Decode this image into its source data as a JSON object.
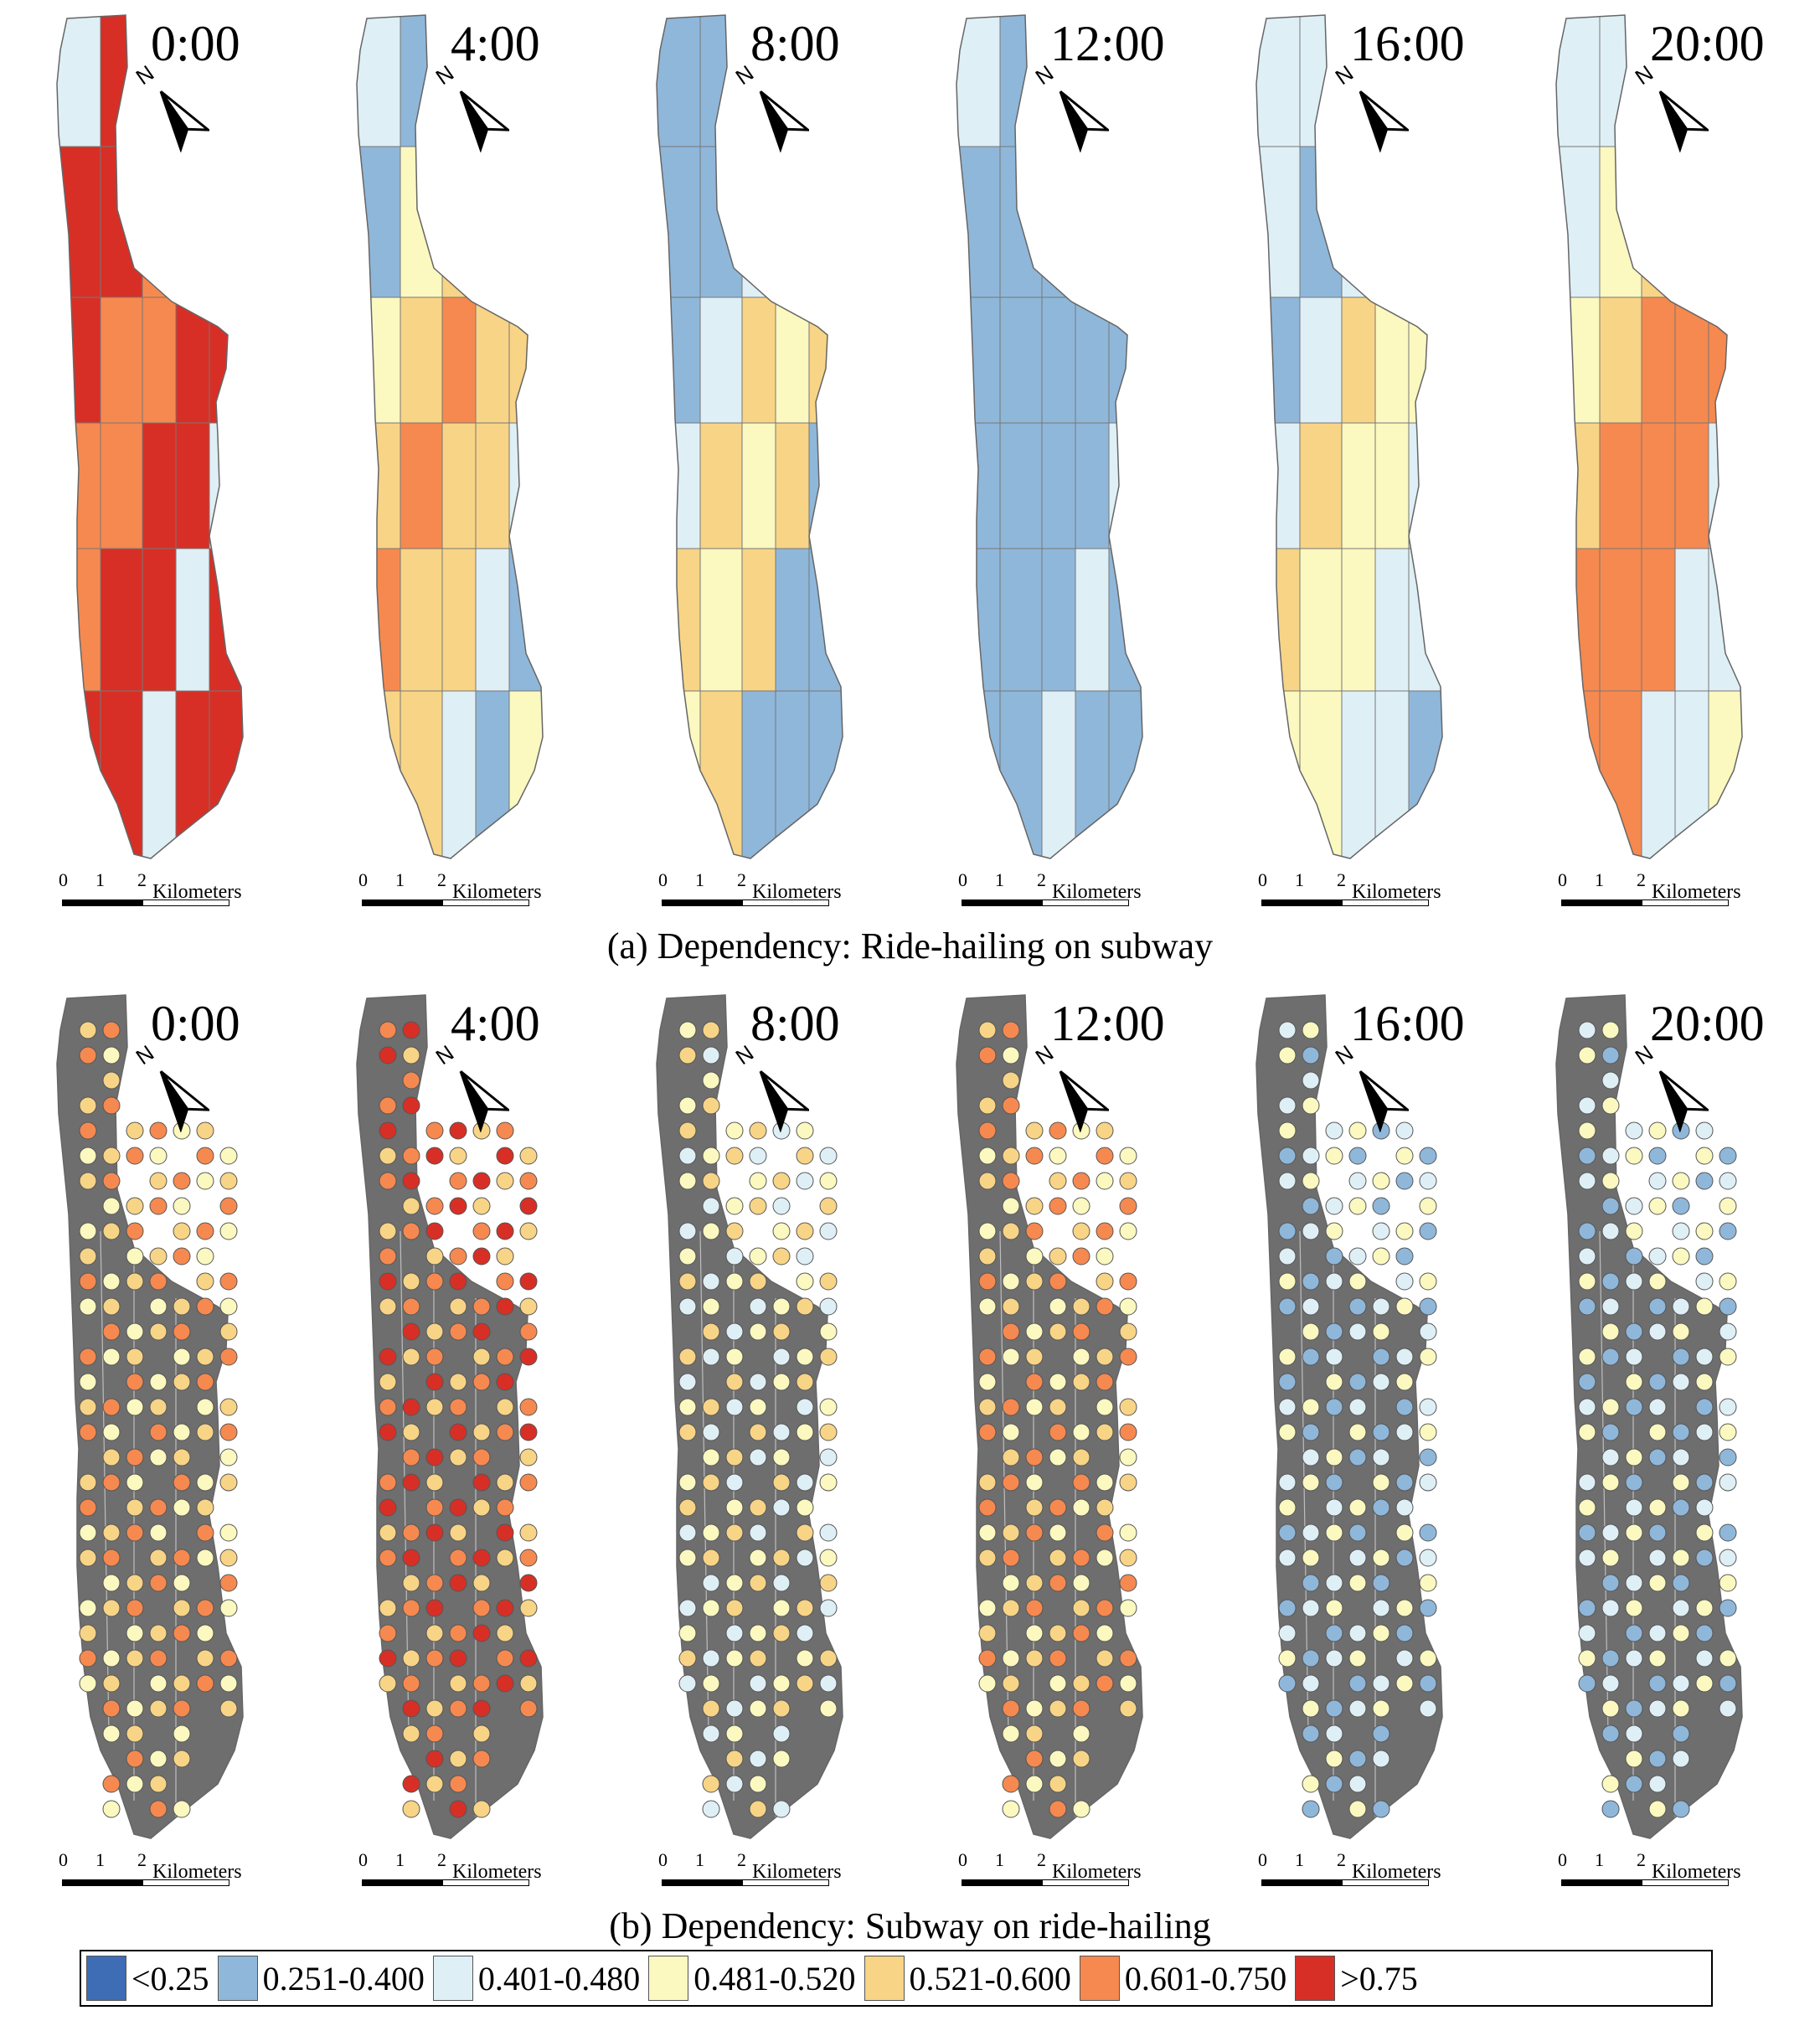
{
  "map_set_a": {
    "caption": "(a) Dependency: Ride-hailing on subway",
    "times": [
      "0:00",
      "4:00",
      "8:00",
      "12:00",
      "16:00",
      "20:00"
    ],
    "zone_levels": [
      [
        2,
        6,
        6,
        5,
        5,
        6,
        6
      ],
      [
        2,
        1,
        3,
        4,
        5,
        4,
        4
      ],
      [
        1,
        1,
        1,
        2,
        4,
        3,
        4
      ],
      [
        2,
        1,
        1,
        1,
        1,
        1,
        1
      ],
      [
        2,
        2,
        1,
        2,
        4,
        3,
        3
      ],
      [
        2,
        2,
        3,
        4,
        5,
        5,
        5
      ]
    ]
  },
  "map_set_b": {
    "caption": "(b) Dependency: Subway on ride-hailing",
    "times": [
      "0:00",
      "4:00",
      "8:00",
      "12:00",
      "16:00",
      "20:00"
    ],
    "station_levels": [
      4,
      5,
      3,
      4,
      2,
      2
    ]
  },
  "north_label": "N",
  "scale_bar": {
    "ticks": [
      "0",
      "1",
      "2"
    ],
    "unit": "Kilometers"
  },
  "legend": {
    "items": [
      {
        "label": "<0.25",
        "color": "#3e6db5"
      },
      {
        "label": "0.251-0.400",
        "color": "#8fb7da"
      },
      {
        "label": "0.401-0.480",
        "color": "#dfeff6"
      },
      {
        "label": "0.481-0.520",
        "color": "#fbf8c0"
      },
      {
        "label": "0.521-0.600",
        "color": "#f8d486"
      },
      {
        "label": "0.601-0.750",
        "color": "#f6894f"
      },
      {
        "label": ">0.75",
        "color": "#d72f26"
      }
    ]
  },
  "land_color_b": "#6e6e6e"
}
